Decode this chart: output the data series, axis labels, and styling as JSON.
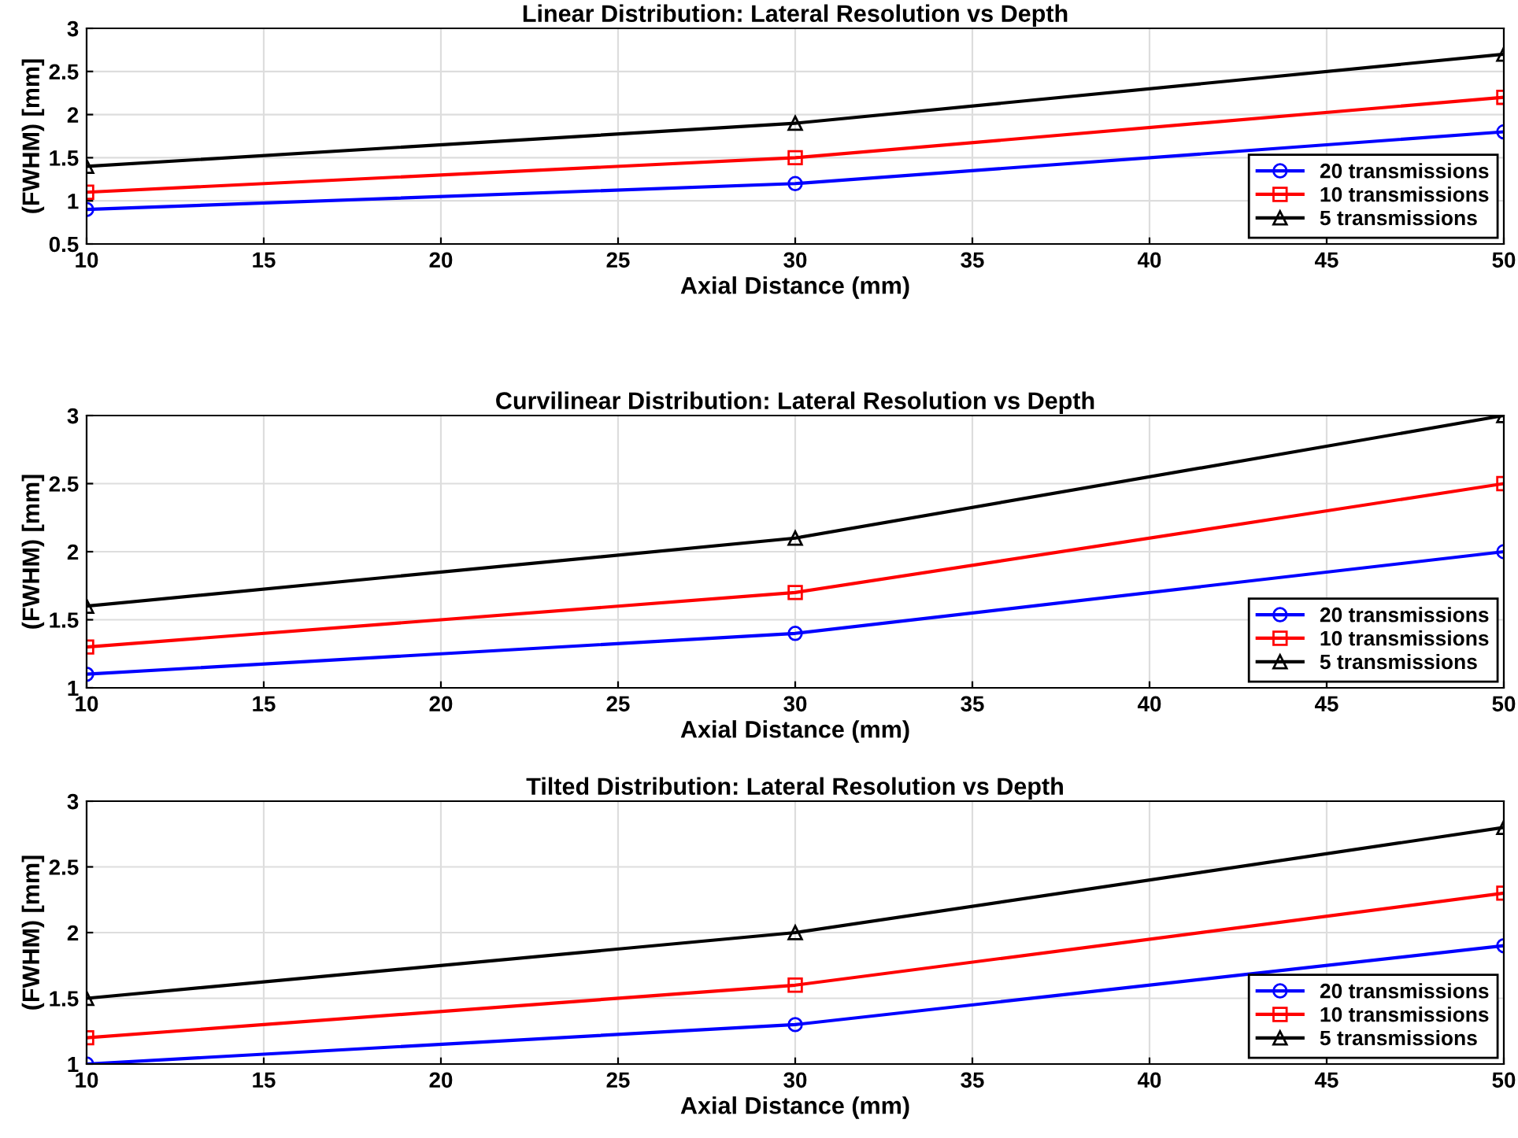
{
  "chart_data": [
    {
      "type": "line",
      "title": "Linear Distribution: Lateral Resolution vs Depth",
      "xlabel": "Axial Distance (mm)",
      "ylabel": "(FWHM) [mm]",
      "x": [
        10,
        30,
        50
      ],
      "xlim": [
        10,
        50
      ],
      "xticks": [
        10,
        15,
        20,
        25,
        30,
        35,
        40,
        45,
        50
      ],
      "ylim": [
        0.5,
        3
      ],
      "yticks": [
        0.5,
        1,
        1.5,
        2,
        2.5,
        3
      ],
      "grid": true,
      "legend": "bottom right",
      "series": [
        {
          "name": "20 transmissions",
          "color": "#0000ff",
          "marker": "circle",
          "values": [
            0.9,
            1.2,
            1.8
          ]
        },
        {
          "name": "10 transmissions",
          "color": "#ff0000",
          "marker": "square",
          "values": [
            1.1,
            1.5,
            2.2
          ]
        },
        {
          "name": "5 transmissions",
          "color": "#000000",
          "marker": "triangle",
          "values": [
            1.4,
            1.9,
            2.7
          ]
        }
      ]
    },
    {
      "type": "line",
      "title": "Curvilinear Distribution: Lateral Resolution vs Depth",
      "xlabel": "Axial Distance (mm)",
      "ylabel": "(FWHM) [mm]",
      "x": [
        10,
        30,
        50
      ],
      "xlim": [
        10,
        50
      ],
      "xticks": [
        10,
        15,
        20,
        25,
        30,
        35,
        40,
        45,
        50
      ],
      "ylim": [
        1,
        3
      ],
      "yticks": [
        1,
        1.5,
        2,
        2.5,
        3
      ],
      "grid": true,
      "legend": "bottom right",
      "series": [
        {
          "name": "20 transmissions",
          "color": "#0000ff",
          "marker": "circle",
          "values": [
            1.1,
            1.4,
            2.0
          ]
        },
        {
          "name": "10 transmissions",
          "color": "#ff0000",
          "marker": "square",
          "values": [
            1.3,
            1.7,
            2.5
          ]
        },
        {
          "name": "5 transmissions",
          "color": "#000000",
          "marker": "triangle",
          "values": [
            1.6,
            2.1,
            3.0
          ]
        }
      ]
    },
    {
      "type": "line",
      "title": "Tilted Distribution: Lateral Resolution vs Depth",
      "xlabel": "Axial Distance (mm)",
      "ylabel": "(FWHM) [mm]",
      "x": [
        10,
        30,
        50
      ],
      "xlim": [
        10,
        50
      ],
      "xticks": [
        10,
        15,
        20,
        25,
        30,
        35,
        40,
        45,
        50
      ],
      "ylim": [
        1,
        3
      ],
      "yticks": [
        1,
        1.5,
        2,
        2.5,
        3
      ],
      "grid": true,
      "legend": "bottom right",
      "series": [
        {
          "name": "20 transmissions",
          "color": "#0000ff",
          "marker": "circle",
          "values": [
            1.0,
            1.3,
            1.9
          ]
        },
        {
          "name": "10 transmissions",
          "color": "#ff0000",
          "marker": "square",
          "values": [
            1.2,
            1.6,
            2.3
          ]
        },
        {
          "name": "5 transmissions",
          "color": "#000000",
          "marker": "triangle",
          "values": [
            1.5,
            2.0,
            2.8
          ]
        }
      ]
    }
  ]
}
